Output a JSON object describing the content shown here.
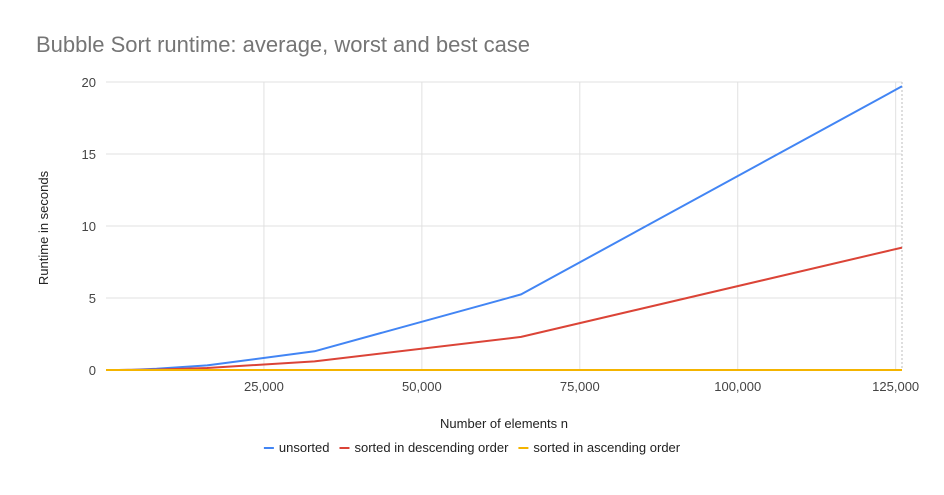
{
  "chart_data": {
    "type": "line",
    "title": "Bubble Sort runtime: average, worst and best case",
    "xlabel": "Number of elements n",
    "ylabel": "Runtime in seconds",
    "xlim": [
      0,
      126000
    ],
    "ylim": [
      0,
      20
    ],
    "x_ticks": [
      25000,
      50000,
      75000,
      100000,
      125000
    ],
    "x_tick_labels": [
      "25,000",
      "50,000",
      "75,000",
      "100,000",
      "125,000"
    ],
    "y_ticks": [
      0,
      5,
      10,
      15,
      20
    ],
    "y_tick_labels": [
      "0",
      "5",
      "10",
      "15",
      "20"
    ],
    "grid": true,
    "legend_position": "bottom",
    "x": [
      0,
      2000,
      4000,
      8000,
      16000,
      33000,
      65700,
      126000
    ],
    "series": [
      {
        "name": "unsorted",
        "color": "#4285f4",
        "values": [
          0,
          0,
          0.01,
          0.08,
          0.32,
          1.3,
          5.25,
          19.7
        ]
      },
      {
        "name": "sorted in descending order",
        "color": "#db4437",
        "values": [
          0,
          0,
          0.005,
          0.03,
          0.14,
          0.6,
          2.3,
          8.5
        ]
      },
      {
        "name": "sorted in ascending order",
        "color": "#f4b400",
        "values": [
          0,
          0,
          0,
          0,
          0,
          0,
          0,
          0
        ]
      }
    ]
  }
}
